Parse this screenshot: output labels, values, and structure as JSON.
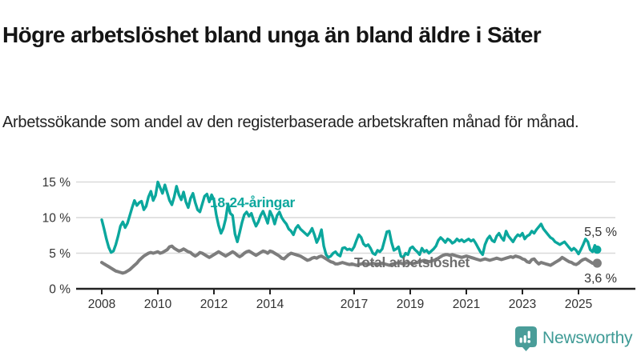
{
  "header": {
    "title": "Högre arbetslöshet bland unga än bland äldre i Säter",
    "subtitle": "Arbetssökande som andel av den registerbaserade arbetskraften månad för månad."
  },
  "footer": {
    "brand": "Newsworthy",
    "brand_color": "#3f9b96"
  },
  "colors": {
    "axis": "#222222",
    "grid": "#d9d9d9",
    "tick_text": "#333333",
    "youth_line": "#0ba79d",
    "total_line": "#7d7d7d",
    "total_label": "#6e6e6e"
  },
  "chart_data": {
    "type": "line",
    "unit": "%",
    "frequency": "monthly",
    "start_year": 2008,
    "start_month": 1,
    "ylim": [
      0,
      15.5
    ],
    "y_ticks": [
      0,
      5,
      10,
      15
    ],
    "y_tick_suffix": " %",
    "x_tick_years": [
      2008,
      2010,
      2012,
      2014,
      2017,
      2019,
      2021,
      2023,
      2025
    ],
    "grid": "horizontal",
    "legend_position": "inline-labels",
    "series": [
      {
        "name": "18-24-åringar",
        "color": "#0ba79d",
        "end_label": "5,5 %",
        "end_value": 5.5,
        "values": [
          9.7,
          8.4,
          7.0,
          5.8,
          5.1,
          5.3,
          6.2,
          7.4,
          8.8,
          9.4,
          8.6,
          9.2,
          10.3,
          11.4,
          12.4,
          11.7,
          12.1,
          12.3,
          11.1,
          11.6,
          12.9,
          13.7,
          12.4,
          13.1,
          15.0,
          14.2,
          13.4,
          14.6,
          13.5,
          12.4,
          11.8,
          12.9,
          14.4,
          13.2,
          12.5,
          13.6,
          12.2,
          11.4,
          12.7,
          13.4,
          12.1,
          11.1,
          10.8,
          11.9,
          13.0,
          13.3,
          12.2,
          13.2,
          12.5,
          10.4,
          8.9,
          7.8,
          8.5,
          9.8,
          11.9,
          10.6,
          10.3,
          7.7,
          6.6,
          7.9,
          9.3,
          10.4,
          10.8,
          10.2,
          10.6,
          9.6,
          8.8,
          9.4,
          10.3,
          10.9,
          10.1,
          9.2,
          10.9,
          10.2,
          9.1,
          10.3,
          10.8,
          10.0,
          9.5,
          9.1,
          8.4,
          8.1,
          7.6,
          8.5,
          8.9,
          8.4,
          8.1,
          7.8,
          7.5,
          7.9,
          8.5,
          7.6,
          6.5,
          7.2,
          8.3,
          6.0,
          4.8,
          4.4,
          4.6,
          5.0,
          5.2,
          4.8,
          4.6,
          5.7,
          5.8,
          5.5,
          5.6,
          5.4,
          5.9,
          6.8,
          7.6,
          7.2,
          6.3,
          6.0,
          6.2,
          5.7,
          5.0,
          4.8,
          5.4,
          5.2,
          5.6,
          6.8,
          8.0,
          8.1,
          6.5,
          5.4,
          5.6,
          5.9,
          4.6,
          4.4,
          5.0,
          4.8,
          5.7,
          5.9,
          5.5,
          5.2,
          4.8,
          5.7,
          5.2,
          5.4,
          5.0,
          5.3,
          5.6,
          6.0,
          6.8,
          7.2,
          6.9,
          6.5,
          7.0,
          6.8,
          6.4,
          6.6,
          7.0,
          6.7,
          6.9,
          6.6,
          6.8,
          7.0,
          6.7,
          6.9,
          6.4,
          5.8,
          5.2,
          4.8,
          6.2,
          7.0,
          7.4,
          6.8,
          6.6,
          7.4,
          7.8,
          7.2,
          6.8,
          8.1,
          7.4,
          7.0,
          6.6,
          7.2,
          7.6,
          7.4,
          7.8,
          7.0,
          7.4,
          7.6,
          8.1,
          7.8,
          8.3,
          8.7,
          9.1,
          8.4,
          8.0,
          7.6,
          7.2,
          7.0,
          6.6,
          6.4,
          6.2,
          6.4,
          6.6,
          6.2,
          5.8,
          5.4,
          5.7,
          5.4,
          4.9,
          5.5,
          6.2,
          7.0,
          6.6,
          5.5,
          5.2,
          6.1,
          5.5
        ]
      },
      {
        "name": "Total arbetslöshet",
        "color": "#7d7d7d",
        "end_label": "3,6 %",
        "end_value": 3.6,
        "values": [
          3.7,
          3.5,
          3.3,
          3.1,
          2.9,
          2.7,
          2.5,
          2.4,
          2.3,
          2.2,
          2.3,
          2.5,
          2.7,
          3.0,
          3.3,
          3.6,
          4.0,
          4.3,
          4.6,
          4.8,
          5.0,
          5.1,
          5.0,
          5.1,
          5.2,
          5.0,
          5.1,
          5.3,
          5.5,
          5.9,
          6.0,
          5.7,
          5.5,
          5.3,
          5.4,
          5.6,
          5.4,
          5.2,
          5.1,
          4.8,
          4.6,
          4.8,
          5.1,
          5.0,
          4.8,
          4.6,
          4.4,
          4.6,
          4.8,
          5.0,
          5.2,
          5.0,
          4.8,
          4.6,
          4.8,
          5.0,
          5.2,
          5.0,
          4.7,
          4.5,
          4.7,
          5.0,
          5.2,
          5.3,
          5.1,
          4.9,
          4.7,
          4.9,
          5.1,
          5.3,
          5.2,
          5.0,
          5.3,
          5.2,
          5.0,
          4.8,
          4.6,
          4.3,
          4.2,
          4.5,
          4.8,
          5.0,
          4.9,
          4.8,
          4.7,
          4.6,
          4.4,
          4.2,
          4.0,
          4.1,
          4.3,
          4.4,
          4.3,
          4.5,
          4.6,
          4.4,
          4.2,
          4.0,
          3.8,
          3.7,
          3.5,
          3.5,
          3.6,
          3.7,
          3.6,
          3.5,
          3.4,
          3.5,
          3.4,
          3.3,
          3.4,
          3.5,
          3.6,
          3.5,
          3.4,
          3.5,
          3.6,
          3.5,
          3.4,
          3.5,
          3.6,
          3.5,
          3.4,
          3.3,
          3.4,
          3.5,
          3.6,
          3.7,
          3.6,
          3.5,
          3.6,
          3.7,
          3.6,
          3.5,
          3.6,
          3.7,
          3.8,
          3.9,
          4.0,
          3.9,
          3.8,
          3.9,
          4.0,
          4.1,
          4.3,
          4.5,
          4.7,
          4.8,
          4.8,
          4.7,
          4.8,
          4.7,
          4.6,
          4.5,
          4.4,
          4.5,
          4.6,
          4.5,
          4.4,
          4.3,
          4.2,
          4.1,
          4.0,
          4.1,
          4.2,
          4.1,
          4.0,
          4.1,
          4.2,
          4.3,
          4.2,
          4.1,
          4.2,
          4.3,
          4.4,
          4.5,
          4.4,
          4.6,
          4.5,
          4.4,
          4.2,
          4.1,
          3.8,
          3.7,
          4.1,
          4.2,
          3.8,
          3.5,
          3.7,
          3.6,
          3.5,
          3.4,
          3.3,
          3.5,
          3.7,
          3.9,
          4.1,
          4.4,
          4.2,
          4.0,
          3.8,
          3.7,
          3.5,
          3.4,
          3.6,
          3.9,
          4.1,
          4.2,
          4.0,
          3.8,
          3.6,
          3.5,
          3.6
        ]
      }
    ]
  }
}
